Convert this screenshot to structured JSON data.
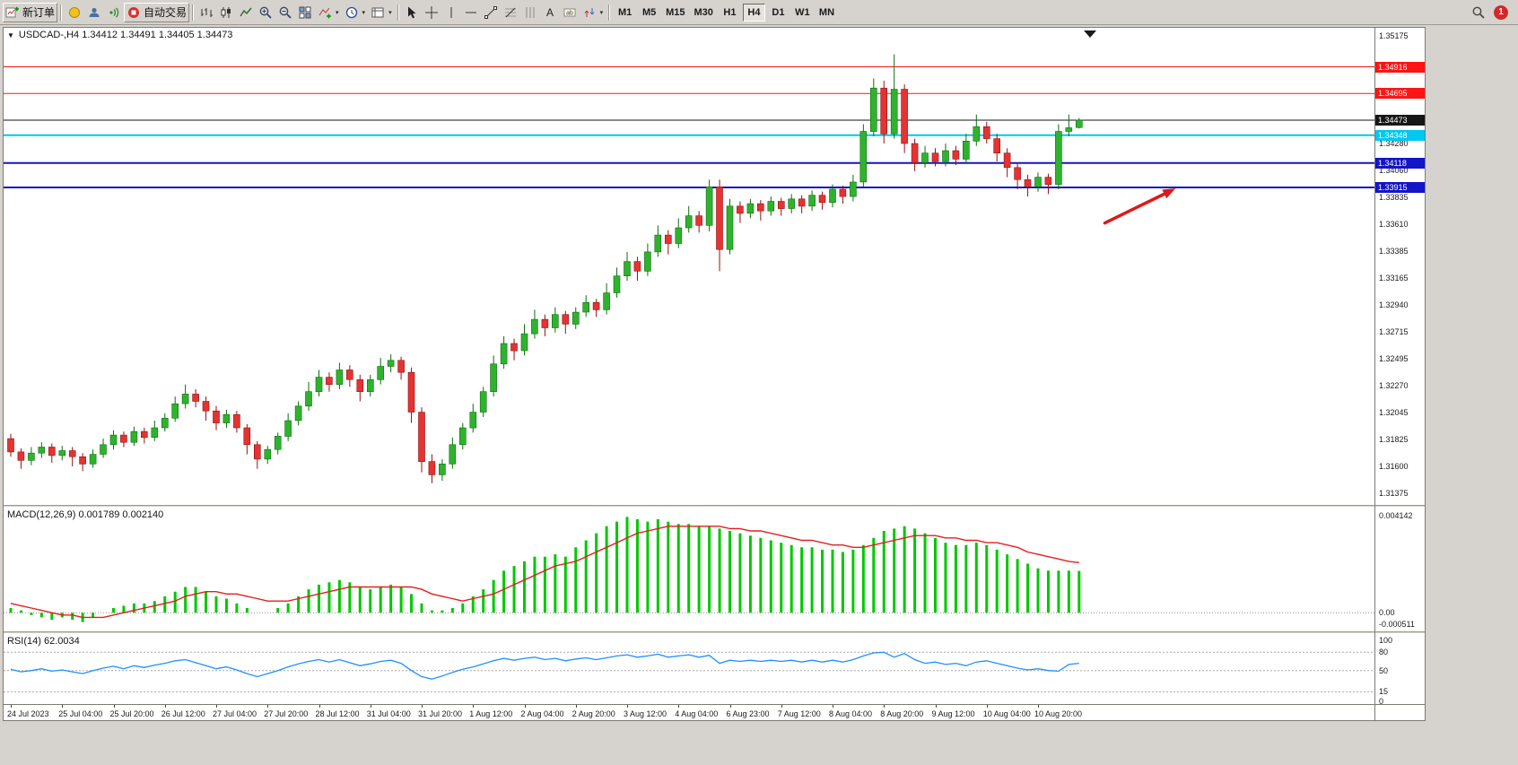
{
  "toolbar": {
    "new_order": "新订单",
    "autotrading": "自动交易",
    "timeframes": [
      {
        "label": "M1",
        "active": false
      },
      {
        "label": "M5",
        "active": false
      },
      {
        "label": "M15",
        "active": false
      },
      {
        "label": "M30",
        "active": false
      },
      {
        "label": "H1",
        "active": false
      },
      {
        "label": "H4",
        "active": true
      },
      {
        "label": "D1",
        "active": false
      },
      {
        "label": "W1",
        "active": false
      },
      {
        "label": "MN",
        "active": false
      }
    ],
    "notification_count": "1"
  },
  "chart": {
    "header": "USDCAD-,H4 1.34412 1.34491 1.34405 1.34473",
    "symbol": "USDCAD-",
    "period": "H4"
  },
  "macd": {
    "display": "MACD(12,26,9) 0.001789 0.002140"
  },
  "rsi": {
    "display": "RSI(14) 62.0034"
  },
  "chart_data": {
    "type": "candlestick",
    "symbol": "USDCAD",
    "timeframe": "H4",
    "current_bar": {
      "open": 1.34412,
      "high": 1.34491,
      "low": 1.34405,
      "close": 1.34473
    },
    "colors": {
      "up": "#2fb32f",
      "up_dark": "#0c6e0c",
      "down": "#e63232",
      "down_dark": "#8f1212",
      "bg": "#ffffff"
    },
    "price_axis": {
      "scale_max": 1.3524,
      "scale_min": 1.3128,
      "ticks": [
        "1.35175",
        "1.34280",
        "1.34060",
        "1.33835",
        "1.33610",
        "1.33385",
        "1.33165",
        "1.32940",
        "1.32715",
        "1.32495",
        "1.32270",
        "1.32045",
        "1.31825",
        "1.31600",
        "1.31375"
      ]
    },
    "levels": [
      {
        "text": "1.34916",
        "price": 1.34916,
        "line": "#ff1414",
        "bg": "#ff1414",
        "fg": "#ffffff",
        "width": 1,
        "name": "resistance-upper"
      },
      {
        "text": "1.34695",
        "price": 1.34695,
        "line": "#ff1414",
        "bg": "#ff1414",
        "fg": "#ffffff",
        "width": 1,
        "name": "resistance-lower"
      },
      {
        "text": "1.34473",
        "price": 1.34473,
        "line": "#161616",
        "bg": "#161616",
        "fg": "#ffffff",
        "width": 1,
        "name": "current-bid"
      },
      {
        "text": "1.34348",
        "price": 1.34348,
        "line": "#00c8f0",
        "bg": "#00c8f0",
        "fg": "#ffffff",
        "width": 2,
        "name": "support-cyan"
      },
      {
        "text": "1.34118",
        "price": 1.34118,
        "line": "#1414c8",
        "bg": "#1414c8",
        "fg": "#ffffff",
        "width": 2,
        "name": "support-blue-upper"
      },
      {
        "text": "1.33915",
        "price": 1.33915,
        "line": "#1414c8",
        "bg": "#1414c8",
        "fg": "#ffffff",
        "width": 2,
        "name": "support-blue-lower"
      }
    ],
    "annotation_arrow": {
      "color": "#e01818",
      "from": {
        "bar": 106.5,
        "price": 1.3362
      },
      "to": {
        "bar": 113,
        "price": 1.3389
      }
    },
    "time_axis": {
      "bars_per_label": 5,
      "labels": [
        "24 Jul 2023",
        "25 Jul 04:00",
        "25 Jul 20:00",
        "26 Jul 12:00",
        "27 Jul 04:00",
        "27 Jul 20:00",
        "28 Jul 12:00",
        "31 Jul 04:00",
        "31 Jul 20:00",
        "1 Aug 12:00",
        "2 Aug 04:00",
        "2 Aug 20:00",
        "3 Aug 12:00",
        "4 Aug 04:00",
        "6 Aug 23:00",
        "7 Aug 12:00",
        "8 Aug 04:00",
        "8 Aug 20:00",
        "9 Aug 12:00",
        "10 Aug 04:00",
        "10 Aug 20:00"
      ]
    },
    "candles": [
      [
        1.3183,
        1.3187,
        1.3168,
        1.3172
      ],
      [
        1.3172,
        1.3175,
        1.3158,
        1.3165
      ],
      [
        1.3165,
        1.3176,
        1.3161,
        1.3171
      ],
      [
        1.3171,
        1.318,
        1.3167,
        1.3176
      ],
      [
        1.3176,
        1.3179,
        1.3163,
        1.3169
      ],
      [
        1.3169,
        1.3177,
        1.3165,
        1.3173
      ],
      [
        1.3173,
        1.3176,
        1.316,
        1.3168
      ],
      [
        1.3168,
        1.3171,
        1.3156,
        1.3162
      ],
      [
        1.3162,
        1.3174,
        1.3159,
        1.317
      ],
      [
        1.317,
        1.3183,
        1.3167,
        1.3178
      ],
      [
        1.3178,
        1.319,
        1.3174,
        1.3186
      ],
      [
        1.3186,
        1.3189,
        1.3176,
        1.318
      ],
      [
        1.318,
        1.3193,
        1.3177,
        1.3189
      ],
      [
        1.3189,
        1.3192,
        1.3179,
        1.3184
      ],
      [
        1.3184,
        1.3198,
        1.3181,
        1.3192
      ],
      [
        1.3192,
        1.3204,
        1.3189,
        1.32
      ],
      [
        1.32,
        1.3218,
        1.3197,
        1.3212
      ],
      [
        1.3212,
        1.3228,
        1.3208,
        1.322
      ],
      [
        1.322,
        1.3224,
        1.3209,
        1.3214
      ],
      [
        1.3214,
        1.3218,
        1.3198,
        1.3206
      ],
      [
        1.3206,
        1.321,
        1.319,
        1.3196
      ],
      [
        1.3196,
        1.3207,
        1.3192,
        1.3203
      ],
      [
        1.3203,
        1.3206,
        1.3188,
        1.3192
      ],
      [
        1.3192,
        1.3195,
        1.317,
        1.3178
      ],
      [
        1.3178,
        1.3181,
        1.3158,
        1.3166
      ],
      [
        1.3166,
        1.3177,
        1.3162,
        1.3174
      ],
      [
        1.3174,
        1.3188,
        1.317,
        1.3185
      ],
      [
        1.3185,
        1.3204,
        1.3181,
        1.3198
      ],
      [
        1.3198,
        1.3214,
        1.3194,
        1.321
      ],
      [
        1.321,
        1.323,
        1.3206,
        1.3222
      ],
      [
        1.3222,
        1.324,
        1.3218,
        1.3234
      ],
      [
        1.3234,
        1.3238,
        1.3222,
        1.3228
      ],
      [
        1.3228,
        1.3246,
        1.3224,
        1.324
      ],
      [
        1.324,
        1.3244,
        1.3226,
        1.3232
      ],
      [
        1.3232,
        1.3236,
        1.3214,
        1.3222
      ],
      [
        1.3222,
        1.3236,
        1.3218,
        1.3232
      ],
      [
        1.3232,
        1.325,
        1.3228,
        1.3243
      ],
      [
        1.3243,
        1.3253,
        1.3238,
        1.3248
      ],
      [
        1.3248,
        1.3251,
        1.3232,
        1.3238
      ],
      [
        1.3238,
        1.3242,
        1.3196,
        1.3205
      ],
      [
        1.3205,
        1.3209,
        1.3155,
        1.3164
      ],
      [
        1.3164,
        1.317,
        1.3146,
        1.3153
      ],
      [
        1.3153,
        1.3166,
        1.3148,
        1.3162
      ],
      [
        1.3162,
        1.3184,
        1.3158,
        1.3178
      ],
      [
        1.3178,
        1.3196,
        1.3174,
        1.3192
      ],
      [
        1.3192,
        1.3212,
        1.3188,
        1.3205
      ],
      [
        1.3205,
        1.3226,
        1.3201,
        1.3222
      ],
      [
        1.3222,
        1.3252,
        1.3218,
        1.3245
      ],
      [
        1.3245,
        1.3268,
        1.3241,
        1.3262
      ],
      [
        1.3262,
        1.3266,
        1.3248,
        1.3256
      ],
      [
        1.3256,
        1.3278,
        1.3252,
        1.327
      ],
      [
        1.327,
        1.329,
        1.3266,
        1.3282
      ],
      [
        1.3282,
        1.3286,
        1.3268,
        1.3275
      ],
      [
        1.3275,
        1.3292,
        1.3271,
        1.3286
      ],
      [
        1.3286,
        1.3289,
        1.327,
        1.3278
      ],
      [
        1.3278,
        1.3292,
        1.3274,
        1.3288
      ],
      [
        1.3288,
        1.3302,
        1.3284,
        1.3296
      ],
      [
        1.3296,
        1.3299,
        1.3284,
        1.329
      ],
      [
        1.329,
        1.3312,
        1.3286,
        1.3304
      ],
      [
        1.3304,
        1.3325,
        1.33,
        1.3318
      ],
      [
        1.3318,
        1.3338,
        1.3314,
        1.333
      ],
      [
        1.333,
        1.3334,
        1.3314,
        1.3322
      ],
      [
        1.3322,
        1.3345,
        1.3318,
        1.3338
      ],
      [
        1.3338,
        1.336,
        1.3334,
        1.3352
      ],
      [
        1.3352,
        1.3356,
        1.3336,
        1.3345
      ],
      [
        1.3345,
        1.3366,
        1.3341,
        1.3358
      ],
      [
        1.3358,
        1.3376,
        1.3354,
        1.3368
      ],
      [
        1.3368,
        1.3372,
        1.3354,
        1.336
      ],
      [
        1.336,
        1.3398,
        1.3355,
        1.3392
      ],
      [
        1.3392,
        1.3398,
        1.3322,
        1.334
      ],
      [
        1.334,
        1.3382,
        1.3336,
        1.3376
      ],
      [
        1.3376,
        1.338,
        1.3362,
        1.337
      ],
      [
        1.337,
        1.3382,
        1.3366,
        1.3378
      ],
      [
        1.3378,
        1.3381,
        1.3364,
        1.3372
      ],
      [
        1.3372,
        1.3384,
        1.3368,
        1.338
      ],
      [
        1.338,
        1.3383,
        1.3368,
        1.3374
      ],
      [
        1.3374,
        1.3386,
        1.337,
        1.3382
      ],
      [
        1.3382,
        1.3385,
        1.337,
        1.3376
      ],
      [
        1.3376,
        1.3389,
        1.3372,
        1.3385
      ],
      [
        1.3385,
        1.3388,
        1.3373,
        1.3379
      ],
      [
        1.3379,
        1.3394,
        1.3375,
        1.339
      ],
      [
        1.339,
        1.3393,
        1.3378,
        1.3384
      ],
      [
        1.3384,
        1.3402,
        1.338,
        1.3396
      ],
      [
        1.3396,
        1.3444,
        1.3392,
        1.3438
      ],
      [
        1.3438,
        1.3482,
        1.3434,
        1.3474
      ],
      [
        1.3474,
        1.348,
        1.3428,
        1.3436
      ],
      [
        1.3436,
        1.3502,
        1.3432,
        1.3473
      ],
      [
        1.3473,
        1.3477,
        1.342,
        1.3428
      ],
      [
        1.3428,
        1.3432,
        1.3405,
        1.3412
      ],
      [
        1.3412,
        1.3426,
        1.3408,
        1.342
      ],
      [
        1.342,
        1.3424,
        1.3409,
        1.3413
      ],
      [
        1.3413,
        1.3428,
        1.3409,
        1.3422
      ],
      [
        1.3422,
        1.3426,
        1.341,
        1.3415
      ],
      [
        1.3415,
        1.3436,
        1.3411,
        1.343
      ],
      [
        1.343,
        1.3452,
        1.3426,
        1.3442
      ],
      [
        1.3442,
        1.3446,
        1.3428,
        1.3432
      ],
      [
        1.3432,
        1.3436,
        1.3413,
        1.342
      ],
      [
        1.342,
        1.3424,
        1.34,
        1.3408
      ],
      [
        1.3408,
        1.3412,
        1.339,
        1.3398
      ],
      [
        1.3398,
        1.3402,
        1.3384,
        1.3392
      ],
      [
        1.3392,
        1.3404,
        1.3388,
        1.34
      ],
      [
        1.34,
        1.3403,
        1.3386,
        1.3394
      ],
      [
        1.3394,
        1.3444,
        1.339,
        1.3438
      ],
      [
        1.3438,
        1.3452,
        1.3434,
        1.3441
      ],
      [
        1.34412,
        1.34491,
        1.34405,
        1.34473
      ]
    ],
    "macd": {
      "label": "MACD(12,26,9)",
      "values_text": "0.001789 0.002140",
      "hist_color": "#00c800",
      "signal_color": "#e02020",
      "scale": [
        -0.0008,
        0.0045
      ],
      "axis": [
        {
          "text": "0.004142",
          "value": 0.004142
        },
        {
          "text": "0.00",
          "value": 0
        },
        {
          "text": "-0.000511",
          "value": -0.000511
        }
      ],
      "histogram": [
        0.0002,
        0.0001,
        -0.0001,
        -0.0002,
        -0.0003,
        -0.0002,
        -0.0003,
        -0.0004,
        -0.0002,
        0,
        0.0002,
        0.0003,
        0.0004,
        0.0004,
        0.0005,
        0.0007,
        0.0009,
        0.0011,
        0.0011,
        0.0009,
        0.0007,
        0.0006,
        0.0004,
        0.0002,
        0,
        0,
        0.0002,
        0.0004,
        0.0007,
        0.001,
        0.0012,
        0.0013,
        0.0014,
        0.0013,
        0.0011,
        0.001,
        0.0011,
        0.0012,
        0.0011,
        0.0008,
        0.0004,
        0.0001,
        0.0001,
        0.0002,
        0.0004,
        0.0007,
        0.001,
        0.0014,
        0.0018,
        0.002,
        0.0022,
        0.0024,
        0.0024,
        0.0025,
        0.0024,
        0.0028,
        0.0031,
        0.0034,
        0.0037,
        0.0039,
        0.0041,
        0.004,
        0.0039,
        0.004,
        0.0039,
        0.0038,
        0.0038,
        0.0037,
        0.0037,
        0.0036,
        0.0035,
        0.0034,
        0.0033,
        0.0032,
        0.0031,
        0.003,
        0.0029,
        0.0028,
        0.0028,
        0.0027,
        0.0027,
        0.0026,
        0.0027,
        0.0029,
        0.0032,
        0.0035,
        0.0036,
        0.0037,
        0.0036,
        0.0034,
        0.0032,
        0.003,
        0.0029,
        0.0029,
        0.003,
        0.0029,
        0.0027,
        0.0025,
        0.0023,
        0.0021,
        0.0019,
        0.0018,
        0.0018,
        0.0018,
        0.001789
      ],
      "signal": [
        0.0004,
        0.0003,
        0.0002,
        0.0001,
        0,
        -0.0001,
        -0.0001,
        -0.0002,
        -0.0002,
        -0.0002,
        -0.0001,
        0,
        0.0001,
        0.0002,
        0.0003,
        0.0004,
        0.0005,
        0.0007,
        0.0008,
        0.0009,
        0.0009,
        0.0008,
        0.0008,
        0.0007,
        0.0006,
        0.0005,
        0.0005,
        0.0005,
        0.0006,
        0.0007,
        0.0008,
        0.0009,
        0.001,
        0.0011,
        0.0011,
        0.0011,
        0.0011,
        0.0011,
        0.0011,
        0.0011,
        0.001,
        0.0008,
        0.0007,
        0.0006,
        0.0005,
        0.0006,
        0.0007,
        0.0008,
        0.001,
        0.0012,
        0.0014,
        0.0016,
        0.0018,
        0.002,
        0.0021,
        0.0022,
        0.0024,
        0.0026,
        0.0028,
        0.003,
        0.0032,
        0.0034,
        0.0035,
        0.0036,
        0.0037,
        0.0037,
        0.0037,
        0.0037,
        0.0037,
        0.0037,
        0.0036,
        0.0036,
        0.0035,
        0.0035,
        0.0034,
        0.0033,
        0.0032,
        0.0031,
        0.0031,
        0.003,
        0.0029,
        0.0029,
        0.0028,
        0.0028,
        0.0029,
        0.003,
        0.0031,
        0.0032,
        0.0033,
        0.0033,
        0.0033,
        0.0032,
        0.0032,
        0.0031,
        0.0031,
        0.003,
        0.003,
        0.0029,
        0.0028,
        0.0026,
        0.0025,
        0.0024,
        0.0023,
        0.0022,
        0.00214
      ]
    },
    "rsi": {
      "label": "RSI(14)",
      "value_text": "62.0034",
      "color": "#1e90ff",
      "scale": [
        -5,
        110
      ],
      "levels": [
        80,
        50,
        15
      ],
      "axis": [
        {
          "text": "100",
          "value": 100
        },
        {
          "text": "80",
          "value": 80
        },
        {
          "text": "50",
          "value": 50
        },
        {
          "text": "15",
          "value": 15
        },
        {
          "text": "0",
          "value": 0
        }
      ],
      "values": [
        52,
        48,
        50,
        53,
        49,
        51,
        48,
        45,
        50,
        54,
        57,
        53,
        58,
        55,
        59,
        62,
        66,
        68,
        63,
        58,
        53,
        56,
        51,
        45,
        40,
        45,
        50,
        56,
        61,
        65,
        68,
        64,
        68,
        63,
        58,
        61,
        65,
        67,
        62,
        50,
        40,
        36,
        41,
        47,
        52,
        56,
        61,
        66,
        70,
        67,
        70,
        72,
        68,
        70,
        66,
        69,
        71,
        68,
        71,
        74,
        76,
        72,
        74,
        77,
        72,
        74,
        76,
        72,
        75,
        62,
        67,
        65,
        67,
        65,
        67,
        65,
        67,
        64,
        67,
        64,
        67,
        64,
        68,
        74,
        79,
        80,
        72,
        78,
        68,
        62,
        64,
        60,
        62,
        58,
        64,
        66,
        62,
        58,
        54,
        51,
        53,
        50,
        49,
        60,
        62.0034
      ]
    }
  }
}
